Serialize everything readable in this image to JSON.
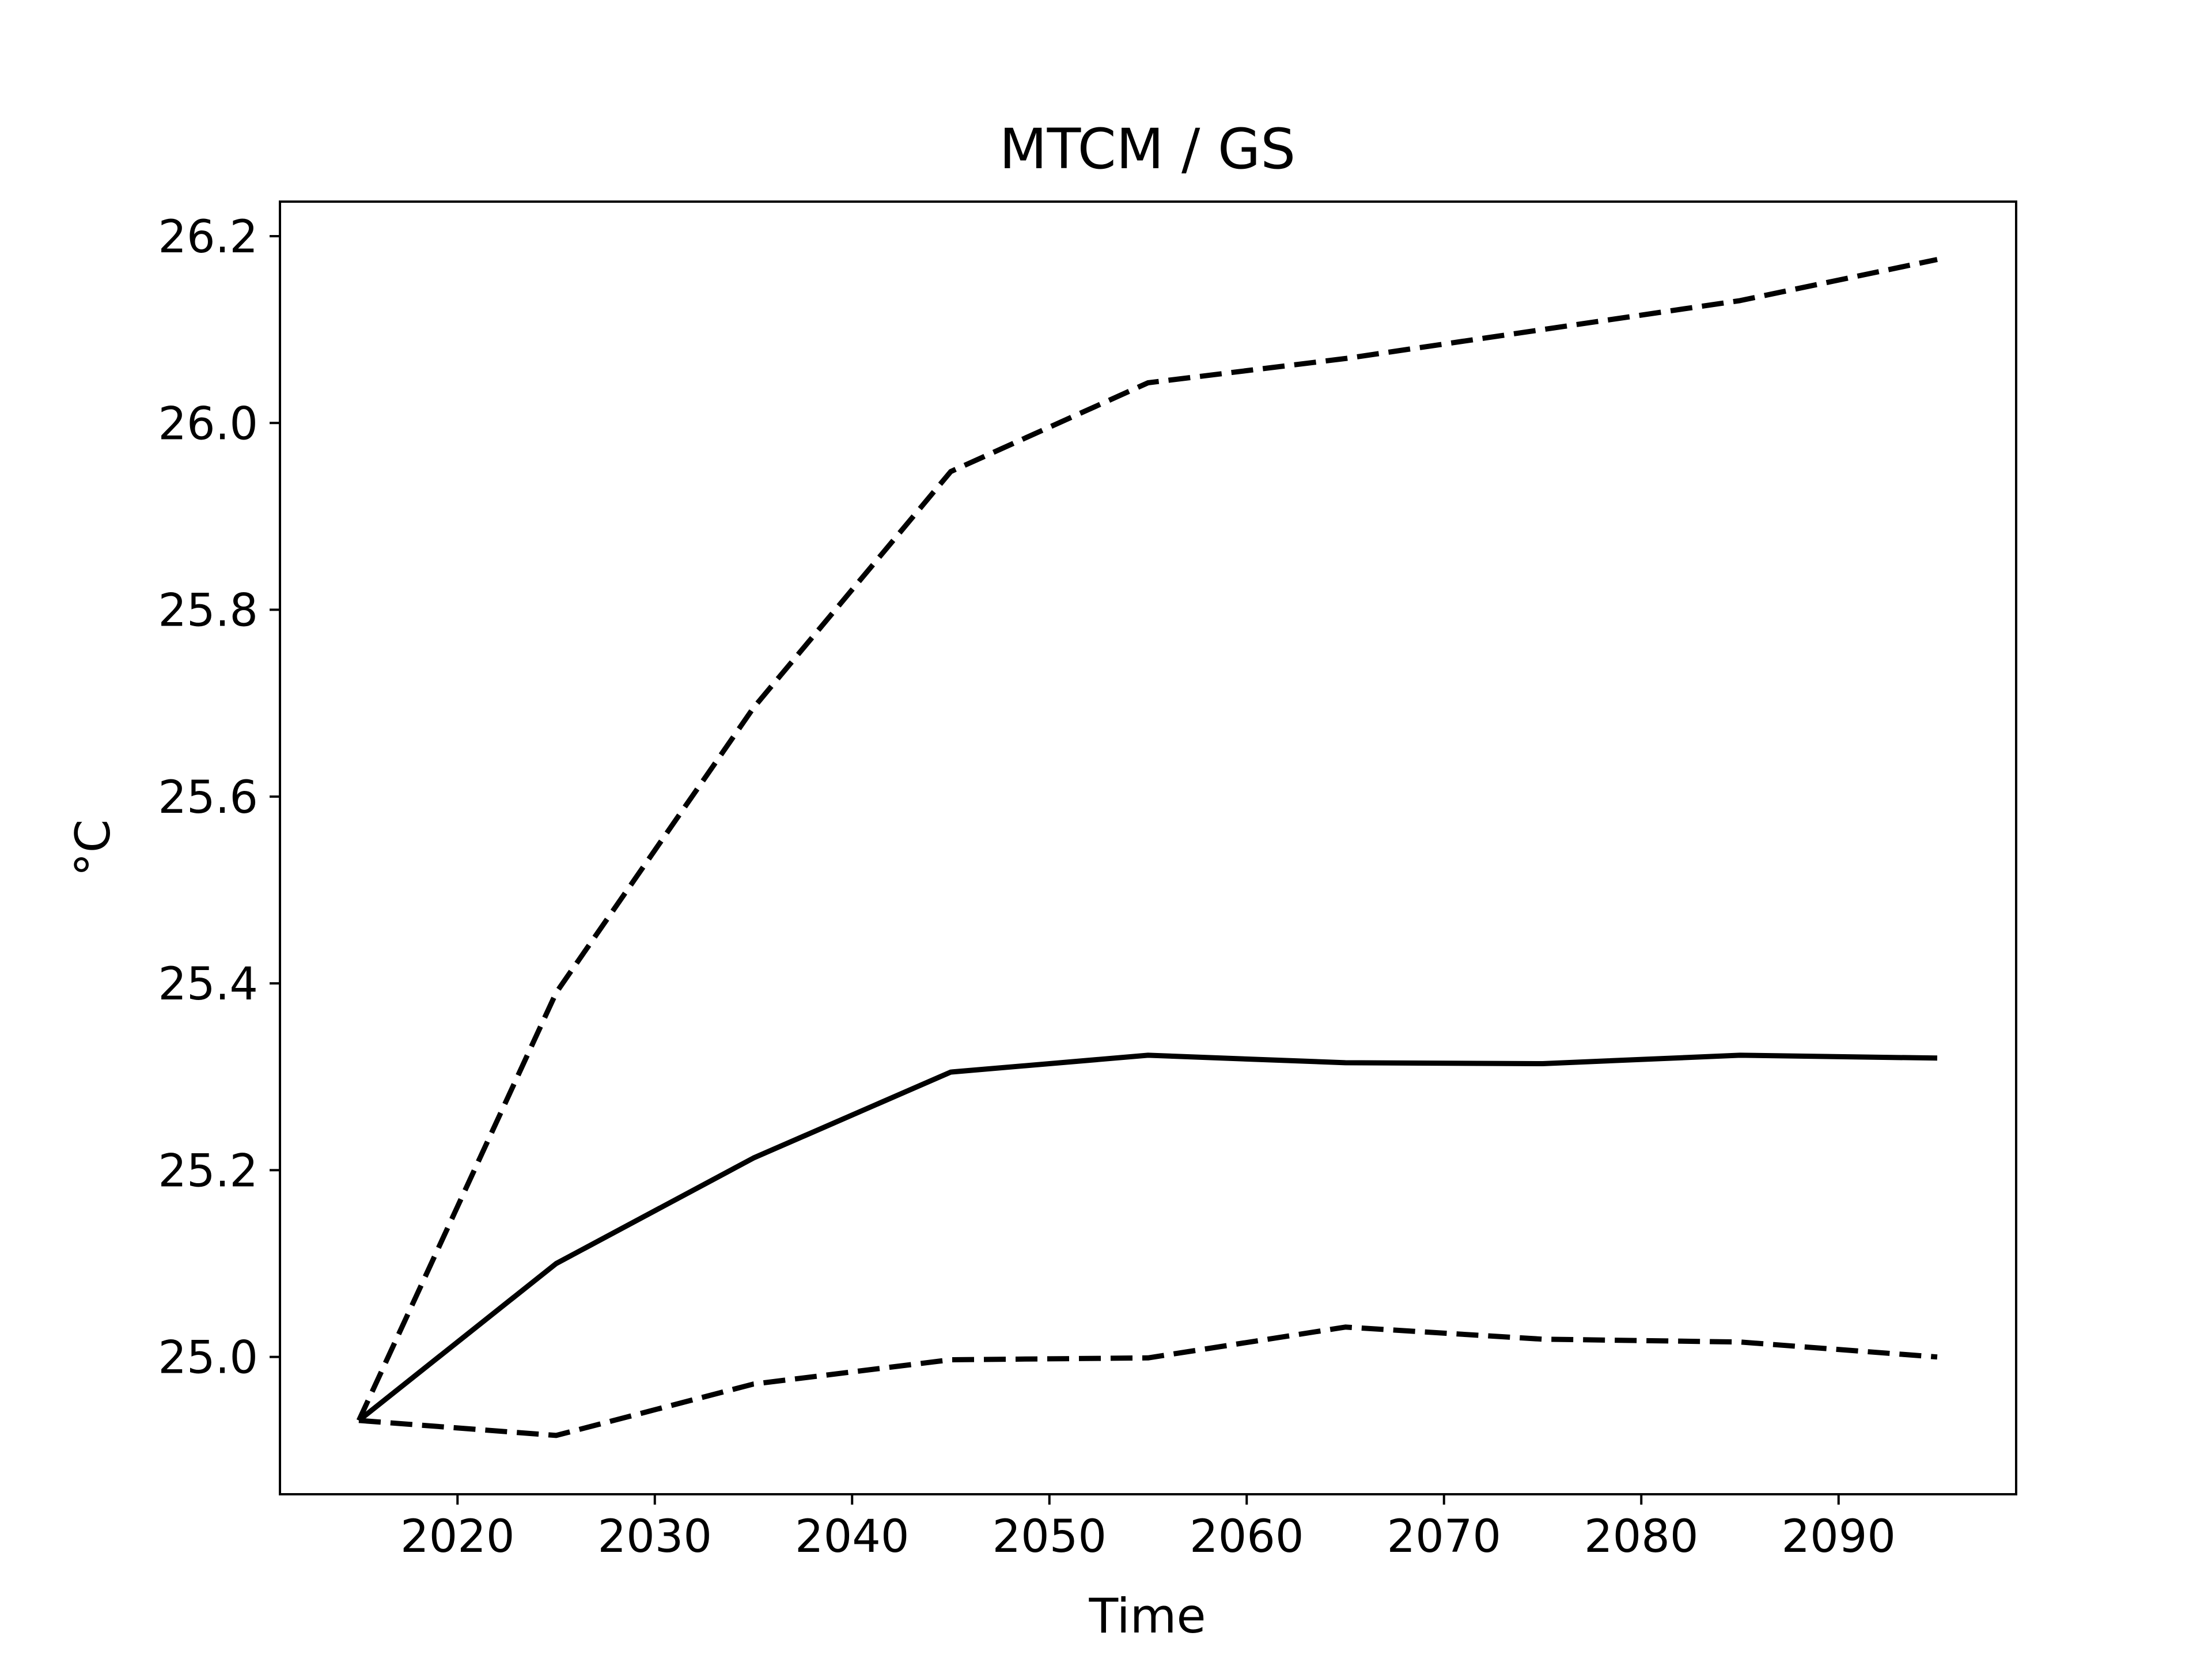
{
  "chart_data": {
    "type": "line",
    "title": "MTCM / GS",
    "xlabel": "Time",
    "ylabel": "°C",
    "x": [
      2015,
      2025,
      2035,
      2045,
      2055,
      2065,
      2075,
      2085,
      2095
    ],
    "series": [
      {
        "values": [
          24.932,
          25.39,
          25.695,
          25.948,
          26.043,
          26.069,
          26.1,
          26.131,
          26.175
        ],
        "style": "dashed",
        "color": "#000000"
      },
      {
        "values": [
          24.932,
          25.1,
          25.213,
          25.305,
          25.323,
          25.315,
          25.314,
          25.323,
          25.32
        ],
        "style": "solid",
        "color": "#000000"
      },
      {
        "values": [
          24.932,
          24.916,
          24.971,
          24.997,
          24.999,
          25.032,
          25.019,
          25.016,
          25.0
        ],
        "style": "dashed",
        "color": "#000000"
      }
    ],
    "xticks": [
      "2020",
      "2030",
      "2040",
      "2050",
      "2060",
      "2070",
      "2080",
      "2090"
    ],
    "yticks": [
      "25.0",
      "25.2",
      "25.4",
      "25.6",
      "25.8",
      "26.0",
      "26.2"
    ],
    "xlim": [
      2011,
      2099
    ],
    "ylim": [
      24.853,
      26.237
    ],
    "grid": false,
    "legend": "none"
  }
}
